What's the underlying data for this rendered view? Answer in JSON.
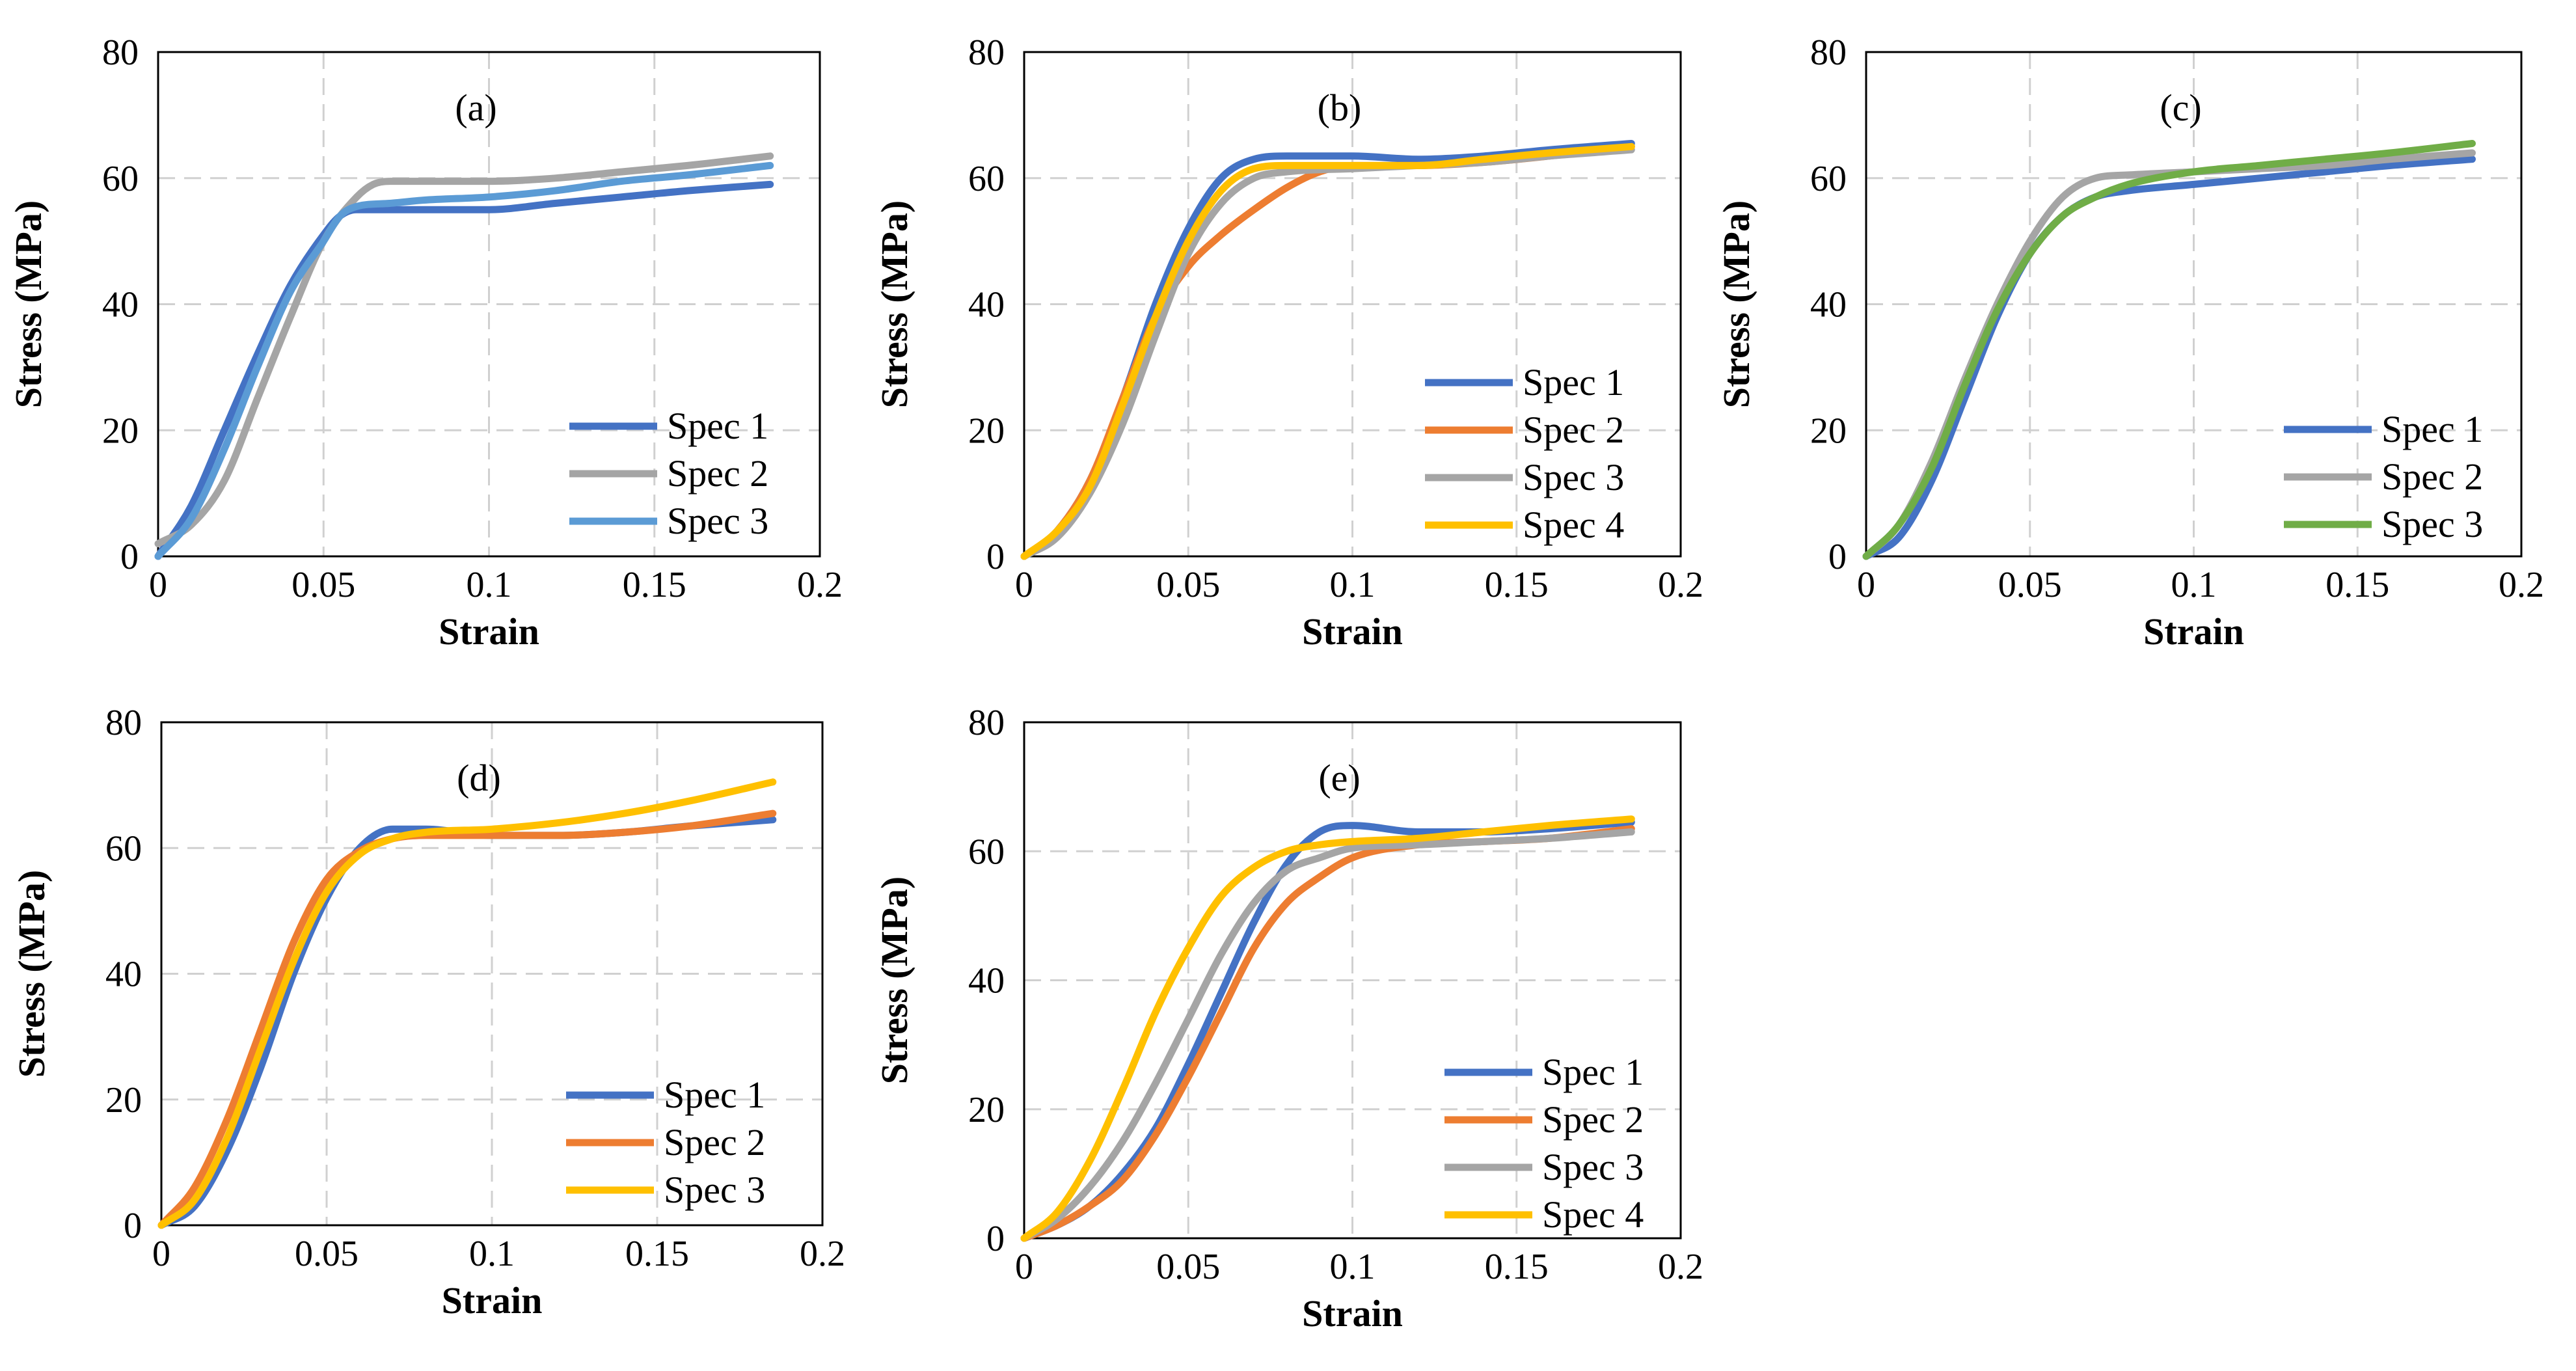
{
  "chart_data": [
    {
      "type": "line",
      "panel_label": "(a)",
      "xlabel": "Strain",
      "ylabel": "Stress (MPa)",
      "xlim": [
        0,
        0.2
      ],
      "ylim": [
        0,
        80
      ],
      "xticks": [
        "0",
        "0.05",
        "0.1",
        "0.15",
        "0.2"
      ],
      "yticks": [
        "0",
        "20",
        "40",
        "60",
        "80"
      ],
      "grid": true,
      "legend_position": "bottom-right",
      "series": [
        {
          "name": "Spec 1",
          "color": "#4472c4",
          "x": [
            0,
            0.01,
            0.02,
            0.03,
            0.04,
            0.05,
            0.055,
            0.06,
            0.07,
            0.08,
            0.1,
            0.12,
            0.14,
            0.16,
            0.185
          ],
          "y": [
            0,
            8,
            20,
            32,
            43,
            51,
            54,
            55,
            55,
            55,
            55,
            56,
            57,
            58,
            59
          ]
        },
        {
          "name": "Spec 2",
          "color": "#a5a5a5",
          "x": [
            0,
            0.01,
            0.02,
            0.03,
            0.04,
            0.05,
            0.06,
            0.065,
            0.07,
            0.08,
            0.1,
            0.12,
            0.14,
            0.16,
            0.185
          ],
          "y": [
            2,
            5,
            12,
            25,
            38,
            50,
            57,
            59,
            59.5,
            59.5,
            59.5,
            60,
            61,
            62,
            63.5
          ]
        },
        {
          "name": "Spec 3",
          "color": "#5b9bd5",
          "x": [
            0,
            0.01,
            0.02,
            0.03,
            0.04,
            0.05,
            0.055,
            0.06,
            0.07,
            0.08,
            0.1,
            0.12,
            0.14,
            0.16,
            0.185
          ],
          "y": [
            0,
            6,
            17,
            30,
            42,
            50,
            54,
            55.5,
            56,
            56.5,
            57,
            58,
            59.5,
            60.5,
            62
          ]
        }
      ]
    },
    {
      "type": "line",
      "panel_label": "(b)",
      "xlabel": "Strain",
      "ylabel": "Stress (MPa)",
      "xlim": [
        0,
        0.2
      ],
      "ylim": [
        0,
        80
      ],
      "xticks": [
        "0",
        "0.05",
        "0.1",
        "0.15",
        "0.2"
      ],
      "yticks": [
        "0",
        "20",
        "40",
        "60",
        "80"
      ],
      "grid": true,
      "legend_position": "bottom-right",
      "series": [
        {
          "name": "Spec 1",
          "color": "#4472c4",
          "x": [
            0,
            0.01,
            0.02,
            0.03,
            0.04,
            0.05,
            0.06,
            0.07,
            0.08,
            0.1,
            0.12,
            0.14,
            0.16,
            0.185
          ],
          "y": [
            0,
            4,
            12,
            25,
            40,
            52,
            60,
            63,
            63.5,
            63.5,
            63,
            63.5,
            64.5,
            65.5
          ]
        },
        {
          "name": "Spec 2",
          "color": "#ed7d31",
          "x": [
            0,
            0.01,
            0.02,
            0.03,
            0.04,
            0.05,
            0.06,
            0.07,
            0.08,
            0.09,
            0.1,
            0.12,
            0.14,
            0.16,
            0.185
          ],
          "y": [
            0,
            4,
            12,
            25,
            38,
            46,
            51,
            55,
            58.5,
            61,
            62,
            62,
            62.5,
            63.5,
            65
          ]
        },
        {
          "name": "Spec 3",
          "color": "#a5a5a5",
          "x": [
            0,
            0.01,
            0.02,
            0.03,
            0.04,
            0.05,
            0.06,
            0.07,
            0.08,
            0.1,
            0.12,
            0.14,
            0.16,
            0.185
          ],
          "y": [
            0,
            3,
            10,
            21,
            35,
            48,
            56,
            60,
            61,
            61.5,
            62,
            62.5,
            63.5,
            64.5
          ]
        },
        {
          "name": "Spec 4",
          "color": "#ffc000",
          "x": [
            0,
            0.01,
            0.02,
            0.03,
            0.04,
            0.05,
            0.06,
            0.07,
            0.08,
            0.1,
            0.12,
            0.14,
            0.16,
            0.185
          ],
          "y": [
            0,
            4,
            11,
            24,
            38,
            50,
            58,
            61.5,
            62,
            62,
            62,
            63,
            64,
            65
          ]
        }
      ]
    },
    {
      "type": "line",
      "panel_label": "(c)",
      "xlabel": "Strain",
      "ylabel": "Stress (MPa)",
      "xlim": [
        0,
        0.2
      ],
      "ylim": [
        0,
        80
      ],
      "xticks": [
        "0",
        "0.05",
        "0.1",
        "0.15",
        "0.2"
      ],
      "yticks": [
        "0",
        "20",
        "40",
        "60",
        "80"
      ],
      "grid": true,
      "legend_position": "bottom-right",
      "series": [
        {
          "name": "Spec 1",
          "color": "#4472c4",
          "x": [
            0,
            0.01,
            0.02,
            0.03,
            0.04,
            0.05,
            0.06,
            0.07,
            0.08,
            0.1,
            0.12,
            0.14,
            0.16,
            0.185
          ],
          "y": [
            0,
            3,
            12,
            25,
            38,
            48,
            54,
            57,
            58,
            59,
            60,
            61,
            62,
            63
          ]
        },
        {
          "name": "Spec 2",
          "color": "#a5a5a5",
          "x": [
            0,
            0.01,
            0.02,
            0.03,
            0.04,
            0.05,
            0.06,
            0.07,
            0.08,
            0.1,
            0.12,
            0.14,
            0.16,
            0.185
          ],
          "y": [
            0,
            5,
            15,
            28,
            40,
            50,
            57,
            60,
            60.5,
            61,
            61.5,
            62,
            63,
            64
          ]
        },
        {
          "name": "Spec 3",
          "color": "#70ad47",
          "x": [
            0,
            0.01,
            0.02,
            0.03,
            0.04,
            0.05,
            0.06,
            0.07,
            0.08,
            0.1,
            0.12,
            0.14,
            0.16,
            0.185
          ],
          "y": [
            0,
            5,
            14,
            27,
            39,
            48,
            54,
            57,
            59,
            61,
            62,
            63,
            64,
            65.5
          ]
        }
      ]
    },
    {
      "type": "line",
      "panel_label": "(d)",
      "xlabel": "Strain",
      "ylabel": "Stress (MPa)",
      "xlim": [
        0,
        0.2
      ],
      "ylim": [
        0,
        80
      ],
      "xticks": [
        "0",
        "0.05",
        "0.1",
        "0.15",
        "0.2"
      ],
      "yticks": [
        "0",
        "20",
        "40",
        "60",
        "80"
      ],
      "grid": true,
      "legend_position": "bottom-right",
      "series": [
        {
          "name": "Spec 1",
          "color": "#4472c4",
          "x": [
            0,
            0.01,
            0.02,
            0.03,
            0.04,
            0.05,
            0.06,
            0.07,
            0.08,
            0.1,
            0.12,
            0.14,
            0.16,
            0.185
          ],
          "y": [
            0,
            3,
            12,
            25,
            40,
            52,
            60,
            63,
            63,
            62,
            62,
            62.5,
            63.5,
            64.5
          ]
        },
        {
          "name": "Spec 2",
          "color": "#ed7d31",
          "x": [
            0,
            0.01,
            0.02,
            0.03,
            0.04,
            0.05,
            0.06,
            0.07,
            0.08,
            0.1,
            0.12,
            0.14,
            0.16,
            0.185
          ],
          "y": [
            0,
            6,
            17,
            31,
            45,
            55,
            59.5,
            61.5,
            62,
            62,
            62,
            62.5,
            63.5,
            65.5
          ]
        },
        {
          "name": "Spec 3",
          "color": "#ffc000",
          "x": [
            0,
            0.01,
            0.02,
            0.03,
            0.04,
            0.05,
            0.06,
            0.07,
            0.08,
            0.1,
            0.12,
            0.14,
            0.16,
            0.185
          ],
          "y": [
            0,
            4,
            14,
            28,
            42,
            53,
            59,
            61.5,
            62.5,
            63,
            64,
            65.5,
            67.5,
            70.5
          ]
        }
      ]
    },
    {
      "type": "line",
      "panel_label": "(e)",
      "xlabel": "Strain",
      "ylabel": "Stress (MPa)",
      "xlim": [
        0,
        0.2
      ],
      "ylim": [
        0,
        80
      ],
      "xticks": [
        "0",
        "0.05",
        "0.1",
        "0.15",
        "0.2"
      ],
      "yticks": [
        "0",
        "20",
        "40",
        "60",
        "80"
      ],
      "grid": true,
      "legend_position": "bottom-right",
      "series": [
        {
          "name": "Spec 1",
          "color": "#4472c4",
          "x": [
            0,
            0.01,
            0.02,
            0.03,
            0.04,
            0.05,
            0.06,
            0.07,
            0.08,
            0.09,
            0.1,
            0.12,
            0.14,
            0.16,
            0.185
          ],
          "y": [
            0,
            2,
            5,
            10,
            17,
            27,
            38,
            49,
            58,
            63,
            64,
            63,
            63,
            63.5,
            64.5
          ]
        },
        {
          "name": "Spec 2",
          "color": "#ed7d31",
          "x": [
            0,
            0.01,
            0.02,
            0.03,
            0.04,
            0.05,
            0.06,
            0.07,
            0.08,
            0.09,
            0.1,
            0.12,
            0.14,
            0.16,
            0.185
          ],
          "y": [
            0,
            2,
            5,
            9,
            16,
            25,
            35,
            45,
            52,
            56,
            59,
            61,
            61.5,
            62,
            63.5
          ]
        },
        {
          "name": "Spec 3",
          "color": "#a5a5a5",
          "x": [
            0,
            0.01,
            0.02,
            0.03,
            0.04,
            0.05,
            0.06,
            0.07,
            0.08,
            0.09,
            0.1,
            0.12,
            0.14,
            0.16,
            0.185
          ],
          "y": [
            0,
            3,
            8,
            15,
            24,
            34,
            44,
            52,
            57,
            59,
            60.5,
            61,
            61.5,
            62,
            63
          ]
        },
        {
          "name": "Spec 4",
          "color": "#ffc000",
          "x": [
            0,
            0.01,
            0.02,
            0.03,
            0.04,
            0.05,
            0.06,
            0.07,
            0.08,
            0.09,
            0.1,
            0.12,
            0.14,
            0.16,
            0.185
          ],
          "y": [
            0,
            4,
            12,
            23,
            35,
            45,
            53,
            57.5,
            60,
            61,
            61.5,
            62,
            63,
            64,
            65
          ]
        }
      ]
    }
  ]
}
